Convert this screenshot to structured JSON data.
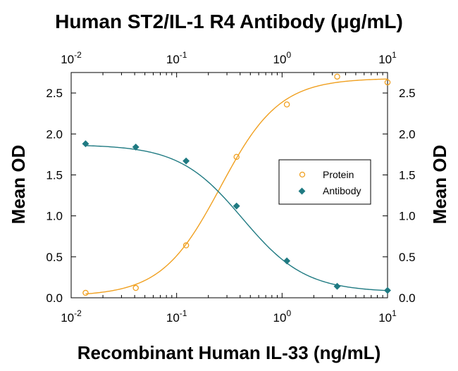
{
  "chart_data": {
    "type": "scatter",
    "title": "Human ST2/IL-1 R4 Antibody (μg/mL)",
    "xlabel": "Recombinant Human IL-33 (ng/mL)",
    "ylabel": "Mean OD",
    "ylabel_right": "Mean OD",
    "x_scale": "log",
    "xlim": [
      0.01,
      10
    ],
    "ylim": [
      0,
      2.75
    ],
    "x_ticks": [
      {
        "value": 0.01,
        "base": "10",
        "exp": "-2"
      },
      {
        "value": 0.1,
        "base": "10",
        "exp": "-1"
      },
      {
        "value": 1,
        "base": "10",
        "exp": "0"
      },
      {
        "value": 10,
        "base": "10",
        "exp": "1"
      }
    ],
    "y_ticks": [
      "0.0",
      "0.5",
      "1.0",
      "1.5",
      "2.0",
      "2.5"
    ],
    "legend_position": "right-middle",
    "grid": false,
    "series": [
      {
        "name": "Protein",
        "marker": "open-circle",
        "color": "#f0a020",
        "x": [
          0.0137,
          0.041,
          0.123,
          0.37,
          1.11,
          3.33,
          10
        ],
        "y": [
          0.06,
          0.12,
          0.64,
          1.72,
          2.36,
          2.7,
          2.63
        ],
        "fit": {
          "bottom": 0.02,
          "top": 2.68,
          "ec50": 0.26,
          "hill": 1.55
        }
      },
      {
        "name": "Antibody",
        "marker": "filled-diamond",
        "color": "#1f7a82",
        "x": [
          0.0137,
          0.041,
          0.123,
          0.37,
          1.11,
          3.33,
          10
        ],
        "y": [
          1.88,
          1.84,
          1.67,
          1.12,
          0.45,
          0.14,
          0.09
        ],
        "fit": {
          "bottom": 0.07,
          "top": 1.87,
          "ec50": 0.42,
          "hill": -1.45
        }
      }
    ]
  }
}
